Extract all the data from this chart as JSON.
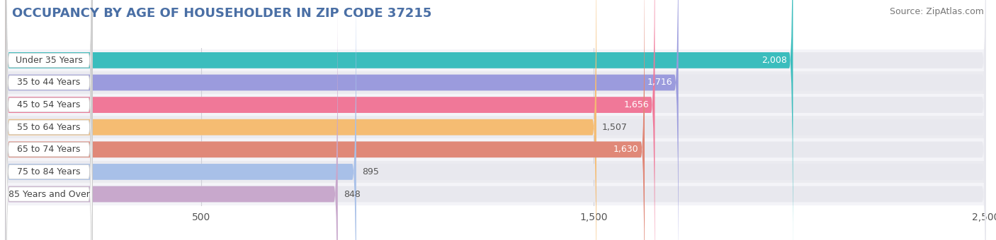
{
  "title": "OCCUPANCY BY AGE OF HOUSEHOLDER IN ZIP CODE 37215",
  "source": "Source: ZipAtlas.com",
  "categories": [
    "Under 35 Years",
    "35 to 44 Years",
    "45 to 54 Years",
    "55 to 64 Years",
    "65 to 74 Years",
    "75 to 84 Years",
    "85 Years and Over"
  ],
  "values": [
    2008,
    1716,
    1656,
    1507,
    1630,
    895,
    848
  ],
  "bar_colors": [
    "#3bbdbd",
    "#9b9bdd",
    "#f07898",
    "#f5bc72",
    "#e08878",
    "#a8c0e8",
    "#c8a8cc"
  ],
  "bar_bg_color": "#e8e8ee",
  "xlim": [
    0,
    2500
  ],
  "xticks": [
    500,
    1500,
    2500
  ],
  "title_fontsize": 13,
  "source_fontsize": 9,
  "tick_fontsize": 10,
  "value_inside_threshold": 1600
}
